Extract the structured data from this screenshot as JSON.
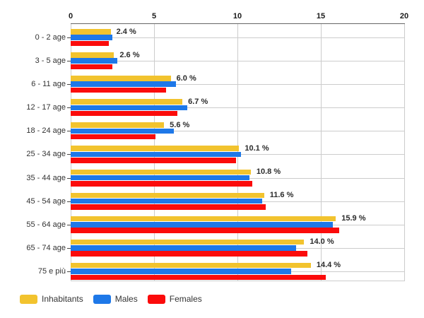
{
  "chart_data": {
    "type": "bar",
    "orientation": "horizontal",
    "title": "",
    "xlabel": "",
    "ylabel": "",
    "xlim": [
      0,
      20
    ],
    "x_ticks": [
      "0",
      "5",
      "10",
      "15",
      "20"
    ],
    "grid": true,
    "legend_position": "bottom-left",
    "categories": [
      "0 - 2 age",
      "3 - 5 age",
      "6 - 11 age",
      "12 - 17 age",
      "18 - 24 age",
      "25 - 34 age",
      "35 - 44 age",
      "45 - 54 age",
      "55 - 64 age",
      "65 - 74 age",
      "75 e più"
    ],
    "series": [
      {
        "name": "Inhabitants",
        "color": "#f2c32e",
        "values": [
          2.4,
          2.6,
          6.0,
          6.7,
          5.6,
          10.1,
          10.8,
          11.6,
          15.9,
          14.0,
          14.4
        ]
      },
      {
        "name": "Males",
        "color": "#1e78e8",
        "values": [
          2.5,
          2.8,
          6.3,
          7.0,
          6.2,
          10.2,
          10.7,
          11.5,
          15.7,
          13.5,
          13.2
        ]
      },
      {
        "name": "Females",
        "color": "#fb0b0b",
        "values": [
          2.3,
          2.5,
          5.7,
          6.4,
          5.1,
          9.9,
          10.9,
          11.7,
          16.1,
          14.2,
          15.3
        ]
      }
    ],
    "value_labels": [
      "2.4 %",
      "2.6 %",
      "6.0 %",
      "6.7 %",
      "5.6 %",
      "10.1 %",
      "10.8 %",
      "11.6 %",
      "15.9 %",
      "14.0 %",
      "14.4 %"
    ],
    "colors": {
      "background": "#ffffff",
      "axis_line": "#666666",
      "gridline": "#cccccc",
      "tick": "#444444",
      "axis_text": "#1a1a1a",
      "category_text": "#333333",
      "value_text": "#2b2b2b",
      "legend_text": "#333333"
    }
  }
}
